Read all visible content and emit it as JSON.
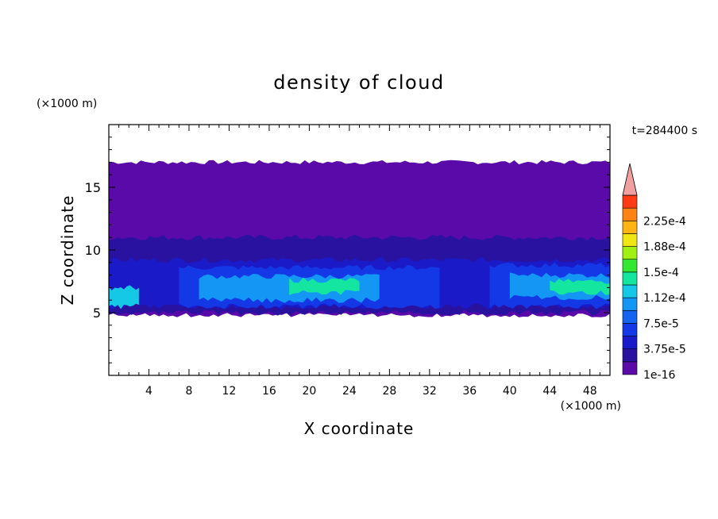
{
  "chart_data": {
    "type": "heatmap",
    "title": "density of cloud",
    "time_label": "t=284400 s",
    "xlabel": "X coordinate",
    "ylabel": "Z coordinate",
    "x_unit": "(×1000 m)",
    "y_unit": "(×1000 m)",
    "xlim": [
      0,
      50
    ],
    "ylim": [
      0,
      20
    ],
    "x_ticks": [
      4,
      8,
      12,
      16,
      20,
      24,
      28,
      32,
      36,
      40,
      44,
      48
    ],
    "y_ticks": [
      5,
      10,
      15
    ],
    "colorbar": {
      "labels": [
        "2.25e-4",
        "1.88e-4",
        "1.5e-4",
        "1.12e-4",
        "7.5e-5",
        "3.75e-5",
        "1e-16"
      ],
      "label_levels": [
        0.000225,
        0.0001875,
        0.00015,
        0.0001125,
        7.5e-05,
        3.75e-05,
        1e-16
      ],
      "levels": [
        1e-16,
        1.875e-05,
        3.75e-05,
        5.625e-05,
        7.5e-05,
        9.375e-05,
        0.0001125,
        0.00013125,
        0.00015,
        0.00016875,
        0.0001875,
        0.00020625,
        0.000225,
        0.00024375
      ],
      "colors": [
        "#5a0aa8",
        "#2a12a0",
        "#1a1ac8",
        "#1438e6",
        "#1464f0",
        "#1496f5",
        "#14c8e6",
        "#14e6a0",
        "#32e632",
        "#a0f014",
        "#f0e614",
        "#ffb414",
        "#ff8214",
        "#ff3c14",
        "#f0a0a0"
      ],
      "overflow_color": "#f0a0a0"
    },
    "cloud_layer": {
      "top_km": 17,
      "base_km": 4.8,
      "upper_level": 1e-16,
      "regions": [
        {
          "x": [
            0,
            50
          ],
          "z": [
            5,
            11
          ],
          "level": 1.875e-05
        },
        {
          "x": [
            0,
            50
          ],
          "z": [
            5.5,
            9.2
          ],
          "level": 3.75e-05
        },
        {
          "x": [
            7,
            33
          ],
          "z": [
            5.5,
            8.6
          ],
          "level": 5.625e-05
        },
        {
          "x": [
            9,
            27
          ],
          "z": [
            6.0,
            7.9
          ],
          "level": 9.375e-05
        },
        {
          "x": [
            18,
            25
          ],
          "z": [
            6.6,
            7.6
          ],
          "level": 0.00013125
        },
        {
          "x": [
            38,
            50
          ],
          "z": [
            5.5,
            8.8
          ],
          "level": 5.625e-05
        },
        {
          "x": [
            40,
            50
          ],
          "z": [
            6.2,
            8.0
          ],
          "level": 9.375e-05
        },
        {
          "x": [
            44,
            50
          ],
          "z": [
            6.6,
            7.5
          ],
          "level": 0.00013125
        },
        {
          "x": [
            0,
            3
          ],
          "z": [
            5.5,
            7.0
          ],
          "level": 0.0001125
        }
      ]
    }
  }
}
